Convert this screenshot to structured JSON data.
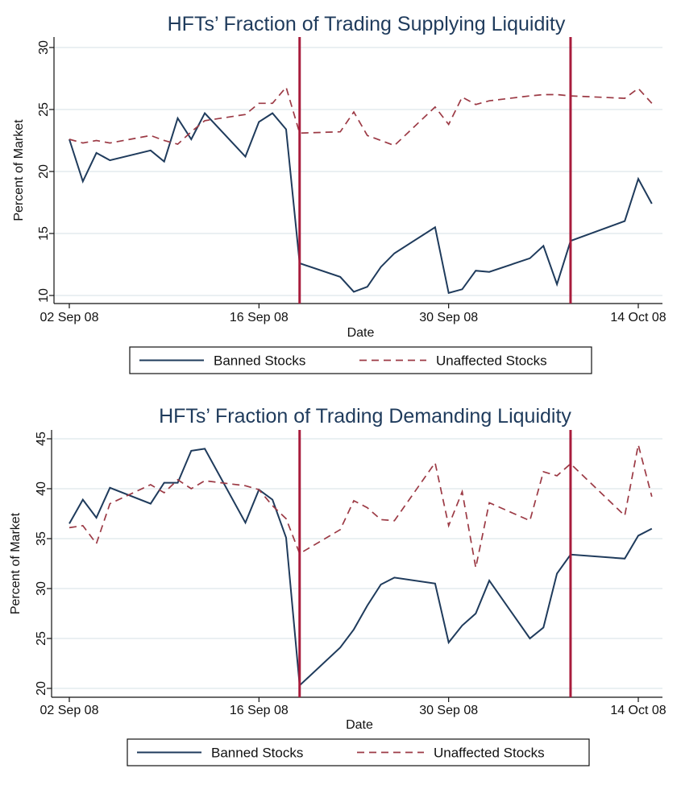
{
  "chart_data": [
    {
      "type": "line",
      "title": "HFTs’ Fraction of Trading Supplying Liquidity",
      "xlabel": "Date",
      "ylabel": "Percent of Market",
      "ylim": [
        10,
        30
      ],
      "yticks": [
        10,
        15,
        20,
        25,
        30
      ],
      "xlim": [
        0,
        44.5
      ],
      "xticks": [
        {
          "x": 0,
          "label": "02 Sep 08"
        },
        {
          "x": 14,
          "label": "16 Sep 08"
        },
        {
          "x": 28,
          "label": "30 Sep 08"
        },
        {
          "x": 42,
          "label": "14 Oct 08"
        }
      ],
      "vlines": [
        17,
        37
      ],
      "grid": true,
      "legend_position": "bottom",
      "series": [
        {
          "name": "Banned Stocks",
          "color": "#1f3b5c",
          "dash": "solid",
          "x": [
            0,
            1,
            2,
            3,
            6,
            7,
            8,
            9,
            10,
            13,
            14,
            15,
            16,
            17,
            20,
            21,
            22,
            23,
            24,
            27,
            28,
            29,
            30,
            31,
            34,
            35,
            36,
            37,
            41,
            42,
            43
          ],
          "y": [
            22.6,
            19.2,
            21.5,
            20.9,
            21.7,
            20.8,
            24.3,
            22.6,
            24.7,
            21.2,
            24.0,
            24.7,
            23.4,
            12.6,
            11.5,
            10.3,
            10.7,
            12.3,
            13.4,
            15.5,
            10.2,
            10.5,
            12.0,
            11.9,
            13.0,
            14.0,
            10.9,
            14.4,
            16.0,
            19.4,
            17.4
          ]
        },
        {
          "name": "Unaffected Stocks",
          "color": "#9c3a45",
          "dash": "dashed",
          "x": [
            0,
            1,
            2,
            3,
            6,
            7,
            8,
            9,
            10,
            13,
            14,
            15,
            16,
            17,
            20,
            21,
            22,
            23,
            24,
            27,
            28,
            29,
            30,
            31,
            34,
            35,
            36,
            37,
            41,
            42,
            43
          ],
          "y": [
            22.6,
            22.3,
            22.5,
            22.3,
            22.9,
            22.5,
            22.2,
            23.2,
            24.1,
            24.6,
            25.5,
            25.5,
            26.8,
            23.1,
            23.2,
            24.8,
            22.9,
            22.5,
            22.1,
            25.2,
            23.8,
            26.0,
            25.4,
            25.7,
            26.1,
            26.2,
            26.2,
            26.1,
            25.9,
            26.7,
            25.5
          ]
        }
      ]
    },
    {
      "type": "line",
      "title": "HFTs’ Fraction of Trading Demanding Liquidity",
      "xlabel": "Date",
      "ylabel": "Percent of Market",
      "ylim": [
        20,
        45
      ],
      "yticks": [
        20,
        25,
        30,
        35,
        40,
        45
      ],
      "xlim": [
        0,
        44.5
      ],
      "xticks": [
        {
          "x": 0,
          "label": "02 Sep 08"
        },
        {
          "x": 14,
          "label": "16 Sep 08"
        },
        {
          "x": 28,
          "label": "30 Sep 08"
        },
        {
          "x": 42,
          "label": "14 Oct 08"
        }
      ],
      "vlines": [
        17,
        37
      ],
      "grid": true,
      "legend_position": "bottom",
      "series": [
        {
          "name": "Banned Stocks",
          "color": "#1f3b5c",
          "dash": "solid",
          "x": [
            0,
            1,
            2,
            3,
            6,
            7,
            8,
            9,
            10,
            13,
            14,
            15,
            16,
            17,
            20,
            21,
            22,
            23,
            24,
            27,
            28,
            29,
            30,
            31,
            34,
            35,
            36,
            37,
            41,
            42,
            43
          ],
          "y": [
            36.5,
            38.9,
            37.1,
            40.1,
            38.5,
            40.6,
            40.6,
            43.8,
            44.0,
            36.6,
            39.9,
            38.9,
            35.1,
            20.3,
            24.1,
            25.9,
            28.3,
            30.4,
            31.1,
            30.5,
            24.6,
            26.3,
            27.5,
            30.8,
            25.0,
            26.1,
            31.5,
            33.4,
            33.0,
            35.3,
            36.0
          ]
        },
        {
          "name": "Unaffected Stocks",
          "color": "#9c3a45",
          "dash": "dashed",
          "x": [
            0,
            1,
            2,
            3,
            6,
            7,
            8,
            9,
            10,
            13,
            14,
            15,
            16,
            17,
            20,
            21,
            22,
            23,
            24,
            27,
            28,
            29,
            30,
            31,
            34,
            35,
            36,
            37,
            41,
            42,
            43
          ],
          "y": [
            36.1,
            36.3,
            34.5,
            38.5,
            40.4,
            39.6,
            40.9,
            40.0,
            40.8,
            40.3,
            39.9,
            38.3,
            37.0,
            33.5,
            35.9,
            38.8,
            38.1,
            36.9,
            36.8,
            42.6,
            36.3,
            39.7,
            32.1,
            38.6,
            36.8,
            41.7,
            41.3,
            42.5,
            37.3,
            44.4,
            39.2
          ]
        }
      ]
    }
  ]
}
